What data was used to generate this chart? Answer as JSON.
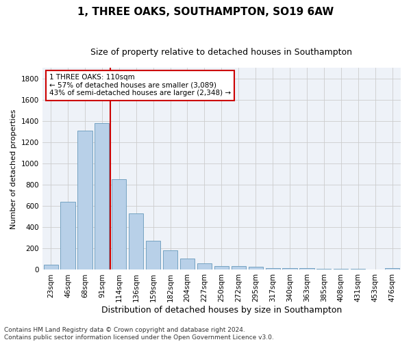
{
  "title": "1, THREE OAKS, SOUTHAMPTON, SO19 6AW",
  "subtitle": "Size of property relative to detached houses in Southampton",
  "xlabel": "Distribution of detached houses by size in Southampton",
  "ylabel": "Number of detached properties",
  "footnote1": "Contains HM Land Registry data © Crown copyright and database right 2024.",
  "footnote2": "Contains public sector information licensed under the Open Government Licence v3.0.",
  "bar_labels": [
    "23sqm",
    "46sqm",
    "68sqm",
    "91sqm",
    "114sqm",
    "136sqm",
    "159sqm",
    "182sqm",
    "204sqm",
    "227sqm",
    "250sqm",
    "272sqm",
    "295sqm",
    "317sqm",
    "340sqm",
    "363sqm",
    "385sqm",
    "408sqm",
    "431sqm",
    "453sqm",
    "476sqm"
  ],
  "bar_values": [
    50,
    640,
    1310,
    1380,
    850,
    530,
    275,
    185,
    103,
    60,
    35,
    35,
    27,
    15,
    15,
    15,
    10,
    10,
    8,
    5,
    13
  ],
  "bar_color": "#b8d0e8",
  "bar_edge_color": "#6699bb",
  "vline_index": 3.5,
  "annotation_text": "1 THREE OAKS: 110sqm\n← 57% of detached houses are smaller (3,089)\n43% of semi-detached houses are larger (2,348) →",
  "annotation_box_color": "#ffffff",
  "annotation_box_edge": "#cc0000",
  "vline_color": "#cc0000",
  "ylim": [
    0,
    1900
  ],
  "yticks": [
    0,
    200,
    400,
    600,
    800,
    1000,
    1200,
    1400,
    1600,
    1800
  ],
  "grid_color": "#cccccc",
  "background_color": "#eef2f8",
  "title_fontsize": 11,
  "subtitle_fontsize": 9,
  "ylabel_fontsize": 8,
  "xlabel_fontsize": 9,
  "tick_fontsize": 7.5,
  "annotation_fontsize": 7.5,
  "footnote_fontsize": 6.5
}
